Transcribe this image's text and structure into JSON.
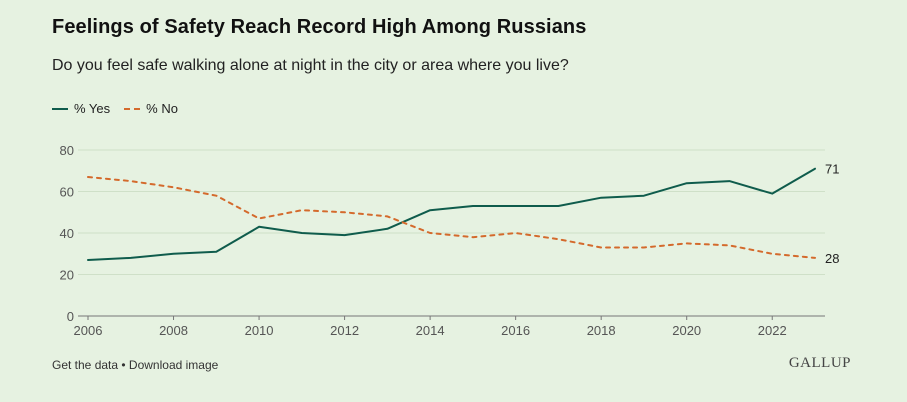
{
  "header": {
    "title": "Feelings of Safety Reach Record High Among Russians",
    "subtitle": "Do you feel safe walking alone at night in the city or area where you live?"
  },
  "legend": {
    "yes_label": "% Yes",
    "no_label": "% No"
  },
  "footer": {
    "get_data": "Get the data",
    "separator": " • ",
    "download": "Download image",
    "logo": "GALLUP"
  },
  "colors": {
    "yes": "#0f5c4c",
    "no": "#d46a2c",
    "grid": "#cfe0c8",
    "axis_text": "#555555"
  },
  "chart_data": {
    "type": "line",
    "title": "Feelings of Safety Reach Record High Among Russians",
    "subtitle": "Do you feel safe walking alone at night in the city or area where you live?",
    "xlabel": "",
    "ylabel": "",
    "xlim": [
      2006,
      2023
    ],
    "ylim": [
      0,
      80
    ],
    "yticks": [
      0,
      20,
      40,
      60,
      80
    ],
    "xticks": [
      2006,
      2008,
      2010,
      2012,
      2014,
      2016,
      2018,
      2020,
      2022
    ],
    "grid": true,
    "legend_position": "top-left",
    "x": [
      2006,
      2007,
      2008,
      2009,
      2010,
      2011,
      2012,
      2013,
      2014,
      2015,
      2016,
      2017,
      2018,
      2019,
      2020,
      2021,
      2022,
      2023
    ],
    "series": [
      {
        "name": "% Yes",
        "style": "solid",
        "values": [
          27,
          28,
          30,
          31,
          43,
          40,
          39,
          42,
          51,
          53,
          53,
          53,
          57,
          58,
          64,
          65,
          59,
          71
        ],
        "end_label": "71"
      },
      {
        "name": "% No",
        "style": "dashed",
        "values": [
          67,
          65,
          62,
          58,
          47,
          51,
          50,
          48,
          40,
          38,
          40,
          37,
          33,
          33,
          35,
          34,
          30,
          28
        ],
        "end_label": "28"
      }
    ]
  }
}
